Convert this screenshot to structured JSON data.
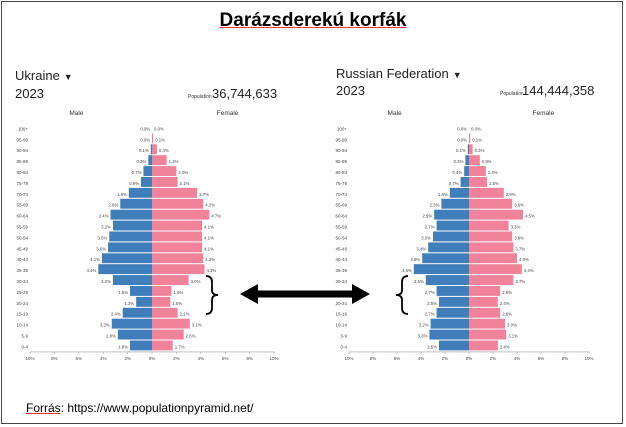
{
  "title": "Darázsderekú korfák",
  "source": {
    "prefix": "Forrás",
    "rest": ": https://www.populationpyramid.net/"
  },
  "colors": {
    "male": "#3f7ebb",
    "female": "#f0829a"
  },
  "icons": {
    "dropdown": "caret-down-icon",
    "arrow": "double-arrow-icon",
    "brace": "curly-brace-icon"
  },
  "chart_data": [
    {
      "type": "bar",
      "country": "Ukraine",
      "year": "2023",
      "population_label": "Population",
      "population": "36,744,633",
      "male_label": "Male",
      "female_label": "Female",
      "categories": [
        "100+",
        "95-99",
        "90-94",
        "85-89",
        "80-84",
        "75-79",
        "70-74",
        "65-69",
        "60-64",
        "55-59",
        "50-54",
        "45-49",
        "40-44",
        "35-39",
        "30-34",
        "25-29",
        "20-24",
        "15-19",
        "10-14",
        "5-9",
        "0-4"
      ],
      "series": [
        {
          "name": "Male",
          "values": [
            0.0,
            0.0,
            0.1,
            0.3,
            0.7,
            0.9,
            1.9,
            2.6,
            3.4,
            3.2,
            3.5,
            3.6,
            4.1,
            4.4,
            3.2,
            1.8,
            1.3,
            2.4,
            3.3,
            2.8,
            1.8
          ]
        },
        {
          "name": "Female",
          "values": [
            0.0,
            0.1,
            0.4,
            1.2,
            2.0,
            2.1,
            3.7,
            4.2,
            4.7,
            4.1,
            4.1,
            4.1,
            4.2,
            4.3,
            3.0,
            1.6,
            1.5,
            2.1,
            3.1,
            2.6,
            1.7
          ]
        }
      ],
      "value_labels": {
        "male": [
          "0.0%",
          "0.0%",
          "0.1%",
          "0.3%",
          "0.7%",
          "0.9%",
          "1.9%",
          "2.6%",
          "3.4%",
          "3.2%",
          "3.5%",
          "3.6%",
          "4.1%",
          "4.4%",
          "3.2%",
          "1.8%",
          "1.3%",
          "2.4%",
          "3.3%",
          "2.8%",
          "1.8%"
        ],
        "female": [
          "0.0%",
          "0.1%",
          "0.4%",
          "1.2%",
          "2.0%",
          "2.1%",
          "3.7%",
          "4.2%",
          "4.7%",
          "4.1%",
          "4.1%",
          "4.1%",
          "4.2%",
          "4.3%",
          "3.0%",
          "1.6%",
          "1.5%",
          "2.1%",
          "3.1%",
          "2.6%",
          "1.7%"
        ]
      },
      "x_ticks": [
        "10%",
        "8%",
        "6%",
        "4%",
        "2%",
        "0%",
        "2%",
        "4%",
        "6%",
        "8%",
        "10%"
      ],
      "xlim": [
        -10,
        10
      ]
    },
    {
      "type": "bar",
      "country": "Russian Federation",
      "year": "2023",
      "population_label": "Population",
      "population": "144,444,358",
      "male_label": "Male",
      "female_label": "Female",
      "categories": [
        "100+",
        "95-99",
        "90-94",
        "85-89",
        "80-84",
        "75-79",
        "70-74",
        "65-69",
        "60-64",
        "55-59",
        "50-54",
        "45-49",
        "40-44",
        "35-39",
        "30-34",
        "25-29",
        "20-24",
        "15-19",
        "10-14",
        "5-9",
        "0-4"
      ],
      "series": [
        {
          "name": "Male",
          "values": [
            0.0,
            0.0,
            0.1,
            0.3,
            0.4,
            0.7,
            1.6,
            2.3,
            2.9,
            2.7,
            3.0,
            3.4,
            3.9,
            4.6,
            3.6,
            2.7,
            2.5,
            2.7,
            3.2,
            3.3,
            2.5
          ]
        },
        {
          "name": "Female",
          "values": [
            0.0,
            0.1,
            0.3,
            0.9,
            1.4,
            1.5,
            2.9,
            3.6,
            4.5,
            3.3,
            3.6,
            3.7,
            4.0,
            4.4,
            3.7,
            2.6,
            2.4,
            2.6,
            3.0,
            3.1,
            2.4
          ]
        }
      ],
      "value_labels": {
        "male": [
          "0.0%",
          "0.0%",
          "0.1%",
          "0.3%",
          "0.4%",
          "0.7%",
          "1.6%",
          "2.3%",
          "2.9%",
          "2.7%",
          "3.0%",
          "3.4%",
          "3.9%",
          "4.6%",
          "3.6%",
          "2.7%",
          "2.5%",
          "2.7%",
          "3.2%",
          "3.3%",
          "2.5%"
        ],
        "female": [
          "0.0%",
          "0.1%",
          "0.3%",
          "0.9%",
          "1.4%",
          "1.5%",
          "2.9%",
          "3.6%",
          "4.5%",
          "3.3%",
          "3.6%",
          "3.7%",
          "4.0%",
          "4.4%",
          "3.7%",
          "2.6%",
          "2.4%",
          "2.6%",
          "3.0%",
          "3.1%",
          "2.4%"
        ]
      },
      "x_ticks": [
        "10%",
        "8%",
        "6%",
        "4%",
        "2%",
        "0%",
        "2%",
        "4%",
        "6%",
        "8%",
        "10%"
      ],
      "xlim": [
        -10,
        10
      ]
    }
  ]
}
